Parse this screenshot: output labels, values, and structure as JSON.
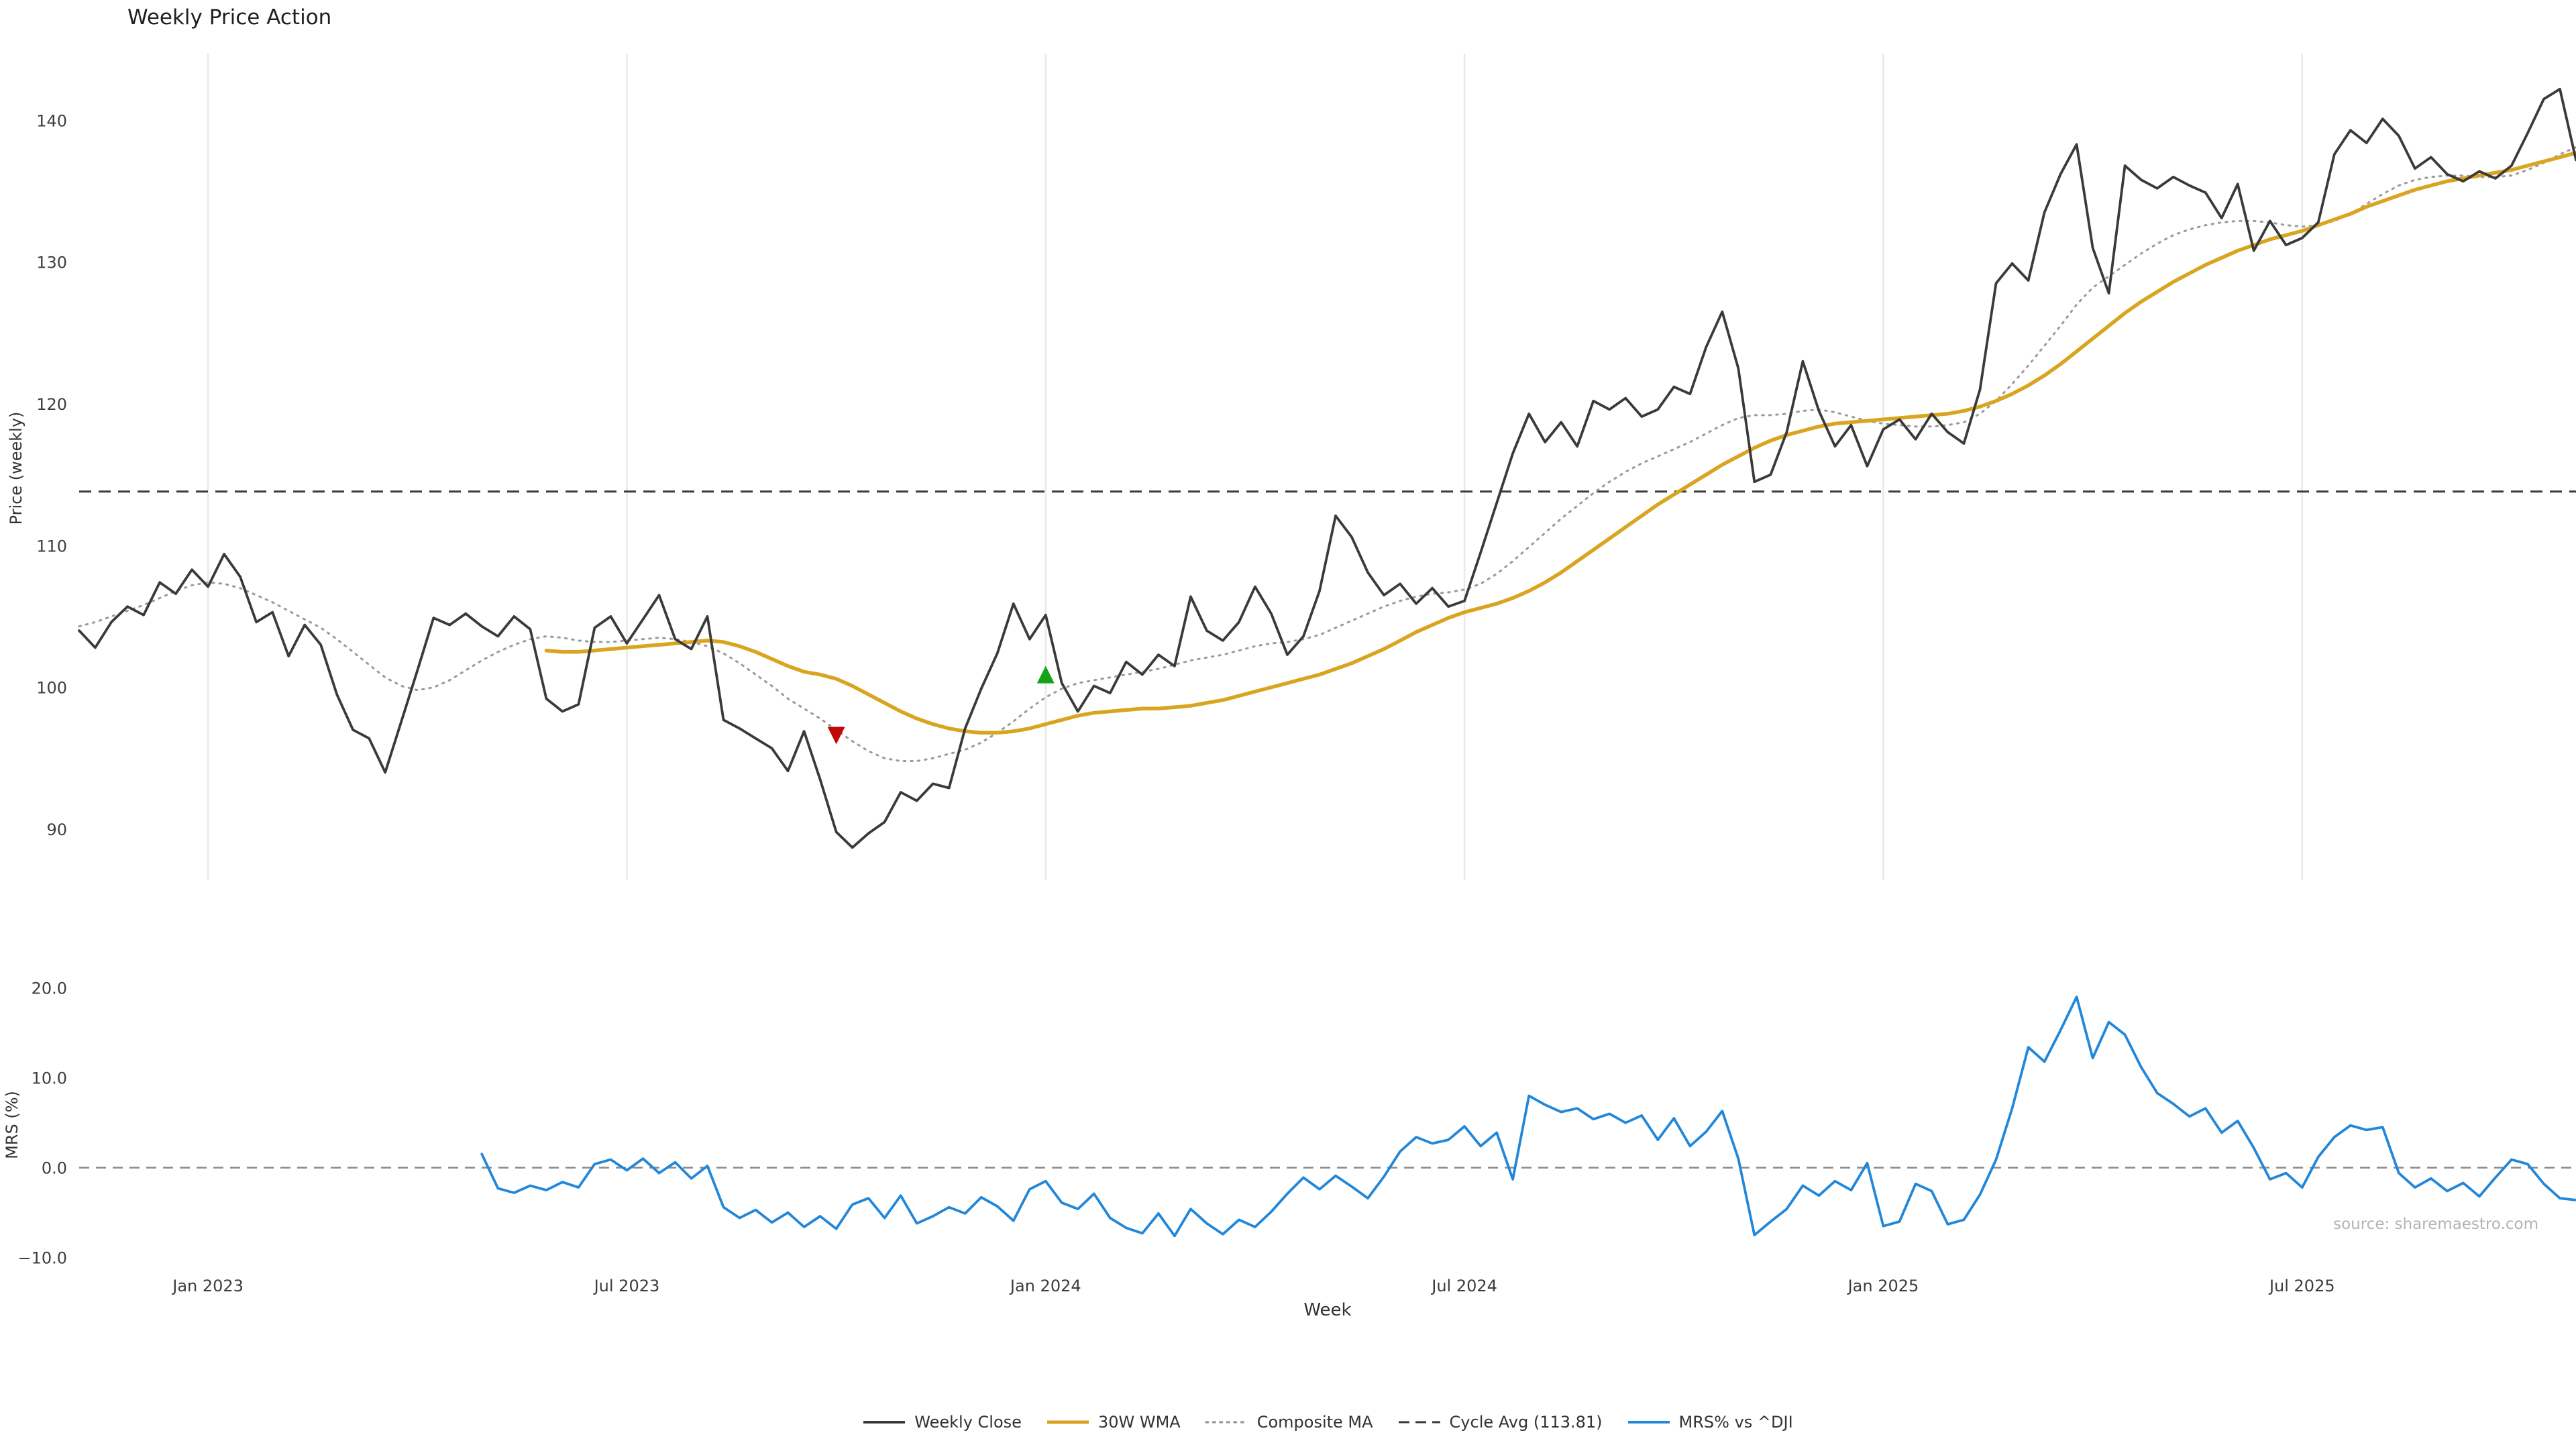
{
  "title": "Weekly Price Action",
  "source": "source: sharemaestro.com",
  "colors": {
    "close": "#3a3a3a",
    "wma": "#d9a521",
    "composite": "#9a9a9a",
    "cycle": "#3a3a3a",
    "mrs": "#2287d9",
    "buy": "#17a317",
    "sell": "#c00808",
    "grid": "#e9e9e9",
    "zero": "#8a8a8a"
  },
  "legend": [
    {
      "label": "Weekly Close",
      "style": "solid",
      "color": "#3a3a3a",
      "w": 4
    },
    {
      "label": "30W WMA",
      "style": "solid",
      "color": "#d9a521",
      "w": 5
    },
    {
      "label": "Composite MA",
      "style": "dotted",
      "color": "#9a9a9a",
      "w": 3.5
    },
    {
      "label": "Cycle Avg (113.81)",
      "style": "dashed",
      "color": "#3a3a3a",
      "w": 3
    },
    {
      "label": "MRS% vs ^DJI",
      "style": "solid",
      "color": "#2287d9",
      "w": 4
    }
  ],
  "chart_data": [
    {
      "type": "line",
      "panel": "price",
      "title": "Weekly Price Action",
      "ylabel": "Price (weekly)",
      "yticks": [
        90,
        100,
        110,
        120,
        130,
        140
      ],
      "ylim": [
        86.4,
        144.7
      ],
      "grid": "vertical-only",
      "x_count": 156,
      "xticks": [
        {
          "index": 8,
          "label": "Jan 2023"
        },
        {
          "index": 34,
          "label": "Jul 2023"
        },
        {
          "index": 60,
          "label": "Jan 2024"
        },
        {
          "index": 86,
          "label": "Jul 2024"
        },
        {
          "index": 112,
          "label": "Jan 2025"
        },
        {
          "index": 138,
          "label": "Jul 2025"
        }
      ],
      "cycle_avg": 113.81,
      "series": [
        {
          "name": "Weekly Close",
          "start": 0,
          "values": [
            104.0,
            102.8,
            104.6,
            105.7,
            105.1,
            107.4,
            106.6,
            108.3,
            107.1,
            109.4,
            107.8,
            104.6,
            105.3,
            102.2,
            104.4,
            103.0,
            99.5,
            97.0,
            96.4,
            94.0,
            97.6,
            101.2,
            104.9,
            104.4,
            105.2,
            104.3,
            103.6,
            105.0,
            104.1,
            99.2,
            98.3,
            98.8,
            104.2,
            105.0,
            103.1,
            104.8,
            106.5,
            103.4,
            102.7,
            105.0,
            97.7,
            97.1,
            96.4,
            95.7,
            94.1,
            96.9,
            93.5,
            89.8,
            88.7,
            89.7,
            90.5,
            92.6,
            92.0,
            93.2,
            92.9,
            97.1,
            99.9,
            102.4,
            105.9,
            103.4,
            105.1,
            100.3,
            98.3,
            100.1,
            99.6,
            101.8,
            100.9,
            102.3,
            101.5,
            106.4,
            104.0,
            103.3,
            104.6,
            107.1,
            105.2,
            102.3,
            103.6,
            106.8,
            112.1,
            110.6,
            108.1,
            106.5,
            107.3,
            105.9,
            107.0,
            105.7,
            106.1,
            109.5,
            113.0,
            116.5,
            119.3,
            117.3,
            118.7,
            117.0,
            120.2,
            119.6,
            120.4,
            119.1,
            119.6,
            121.2,
            120.7,
            124.0,
            126.5,
            122.5,
            114.5,
            115.0,
            118.0,
            123.0,
            119.5,
            117.0,
            118.5,
            115.6,
            118.2,
            118.9,
            117.5,
            119.3,
            118.0,
            117.2,
            121.0,
            128.5,
            129.9,
            128.7,
            133.5,
            136.2,
            138.3,
            131.0,
            127.8,
            136.8,
            135.8,
            135.2,
            136.0,
            135.4,
            134.9,
            133.1,
            135.5,
            130.8,
            132.9,
            131.2,
            131.7,
            132.8,
            137.6,
            139.3,
            138.4,
            140.1,
            138.9,
            136.6,
            137.4,
            136.2,
            135.7,
            136.4,
            135.9,
            136.8,
            139.1,
            141.5,
            142.2,
            137.2
          ]
        },
        {
          "name": "30W WMA",
          "start": 29,
          "values": [
            102.6,
            102.5,
            102.5,
            102.6,
            102.7,
            102.8,
            102.9,
            103.0,
            103.1,
            103.2,
            103.3,
            103.2,
            102.9,
            102.5,
            102.0,
            101.5,
            101.1,
            100.9,
            100.6,
            100.1,
            99.5,
            98.9,
            98.3,
            97.8,
            97.4,
            97.1,
            96.9,
            96.8,
            96.8,
            96.9,
            97.1,
            97.4,
            97.7,
            98.0,
            98.2,
            98.3,
            98.4,
            98.5,
            98.5,
            98.6,
            98.7,
            98.9,
            99.1,
            99.4,
            99.7,
            100.0,
            100.3,
            100.6,
            100.9,
            101.3,
            101.7,
            102.2,
            102.7,
            103.3,
            103.9,
            104.4,
            104.9,
            105.3,
            105.6,
            105.9,
            106.3,
            106.8,
            107.4,
            108.1,
            108.9,
            109.7,
            110.5,
            111.3,
            112.1,
            112.9,
            113.6,
            114.3,
            115.0,
            115.7,
            116.3,
            116.9,
            117.4,
            117.8,
            118.1,
            118.4,
            118.6,
            118.7,
            118.8,
            118.9,
            119.0,
            119.1,
            119.2,
            119.3,
            119.5,
            119.8,
            120.2,
            120.7,
            121.3,
            122.0,
            122.8,
            123.7,
            124.6,
            125.5,
            126.4,
            127.2,
            127.9,
            128.6,
            129.2,
            129.8,
            130.3,
            130.8,
            131.2,
            131.6,
            131.9,
            132.2,
            132.6,
            133.0,
            133.4,
            133.9,
            134.3,
            134.7,
            135.1,
            135.4,
            135.7,
            135.9,
            136.1,
            136.3,
            136.5,
            136.8,
            137.1,
            137.4,
            137.7
          ]
        },
        {
          "name": "Composite MA",
          "start": 0,
          "values": [
            104.3,
            104.6,
            105.0,
            105.4,
            105.8,
            106.3,
            106.8,
            107.2,
            107.4,
            107.3,
            107.0,
            106.5,
            106.0,
            105.4,
            104.8,
            104.2,
            103.4,
            102.5,
            101.6,
            100.7,
            100.1,
            99.8,
            100.0,
            100.5,
            101.2,
            101.9,
            102.5,
            103.0,
            103.4,
            103.6,
            103.5,
            103.3,
            103.2,
            103.2,
            103.3,
            103.4,
            103.5,
            103.4,
            103.2,
            102.9,
            102.4,
            101.7,
            100.9,
            100.1,
            99.2,
            98.5,
            97.8,
            97.0,
            96.2,
            95.5,
            95.0,
            94.8,
            94.8,
            95.0,
            95.3,
            95.6,
            96.1,
            96.8,
            97.6,
            98.5,
            99.3,
            99.9,
            100.3,
            100.5,
            100.7,
            100.9,
            101.1,
            101.3,
            101.6,
            101.9,
            102.1,
            102.3,
            102.6,
            102.9,
            103.1,
            103.2,
            103.4,
            103.7,
            104.2,
            104.7,
            105.2,
            105.7,
            106.1,
            106.4,
            106.6,
            106.7,
            106.9,
            107.3,
            108.0,
            108.9,
            109.9,
            110.9,
            111.9,
            112.8,
            113.7,
            114.5,
            115.2,
            115.8,
            116.3,
            116.8,
            117.3,
            117.9,
            118.5,
            119.0,
            119.2,
            119.2,
            119.3,
            119.5,
            119.6,
            119.4,
            119.1,
            118.8,
            118.6,
            118.5,
            118.4,
            118.4,
            118.5,
            118.7,
            119.3,
            120.2,
            121.4,
            122.7,
            124.1,
            125.5,
            127.0,
            128.2,
            129.0,
            129.8,
            130.6,
            131.3,
            131.9,
            132.3,
            132.6,
            132.8,
            132.9,
            132.9,
            132.8,
            132.6,
            132.5,
            132.6,
            132.9,
            133.4,
            134.1,
            134.8,
            135.4,
            135.8,
            136.0,
            136.1,
            136.1,
            136.0,
            136.0,
            136.1,
            136.5,
            137.0,
            137.6,
            138.1
          ]
        }
      ],
      "markers": [
        {
          "type": "sell",
          "week": 47,
          "value": 96.6
        },
        {
          "type": "buy",
          "week": 60,
          "value": 100.9
        }
      ]
    },
    {
      "type": "line",
      "panel": "mrs",
      "ylabel": "MRS (%)",
      "xlabel": "Week",
      "yticks": [
        -10,
        0,
        10,
        20
      ],
      "ytick_labels": [
        "−10.0",
        "0.0",
        "10.0",
        "20.0"
      ],
      "ylim": [
        -11.3,
        20.8
      ],
      "zero_line": 0,
      "series": [
        {
          "name": "MRS% vs ^DJI",
          "start": 25,
          "values": [
            1.5,
            -2.3,
            -2.8,
            -2.0,
            -2.5,
            -1.6,
            -2.2,
            0.4,
            0.9,
            -0.3,
            1.0,
            -0.6,
            0.6,
            -1.2,
            0.2,
            -4.4,
            -5.6,
            -4.7,
            -6.1,
            -5.0,
            -6.6,
            -5.4,
            -6.8,
            -4.1,
            -3.4,
            -5.6,
            -3.1,
            -6.2,
            -5.4,
            -4.4,
            -5.1,
            -3.3,
            -4.3,
            -5.9,
            -2.4,
            -1.5,
            -3.9,
            -4.6,
            -2.9,
            -5.6,
            -6.7,
            -7.3,
            -5.1,
            -7.6,
            -4.6,
            -6.2,
            -7.4,
            -5.8,
            -6.6,
            -4.9,
            -2.9,
            -1.1,
            -2.4,
            -0.9,
            -2.1,
            -3.4,
            -1.0,
            1.8,
            3.4,
            2.7,
            3.1,
            4.6,
            2.4,
            3.9,
            -1.3,
            8.0,
            7.0,
            6.2,
            6.6,
            5.4,
            6.0,
            5.0,
            5.8,
            3.1,
            5.5,
            2.4,
            4.0,
            6.3,
            1.0,
            -7.5,
            -6.0,
            -4.6,
            -2.0,
            -3.1,
            -1.5,
            -2.5,
            0.5,
            -6.5,
            -6.0,
            -1.8,
            -2.6,
            -6.3,
            -5.8,
            -3.0,
            0.9,
            6.6,
            13.4,
            11.8,
            15.3,
            19.0,
            12.2,
            16.2,
            14.8,
            11.2,
            8.3,
            7.1,
            5.7,
            6.6,
            3.9,
            5.2,
            2.2,
            -1.3,
            -0.6,
            -2.2,
            1.2,
            3.4,
            4.7,
            4.2,
            4.5,
            -0.6,
            -2.2,
            -1.2,
            -2.6,
            -1.7,
            -3.2,
            -1.1,
            0.9,
            0.4,
            -1.8,
            -3.4,
            -3.6
          ]
        }
      ]
    }
  ]
}
